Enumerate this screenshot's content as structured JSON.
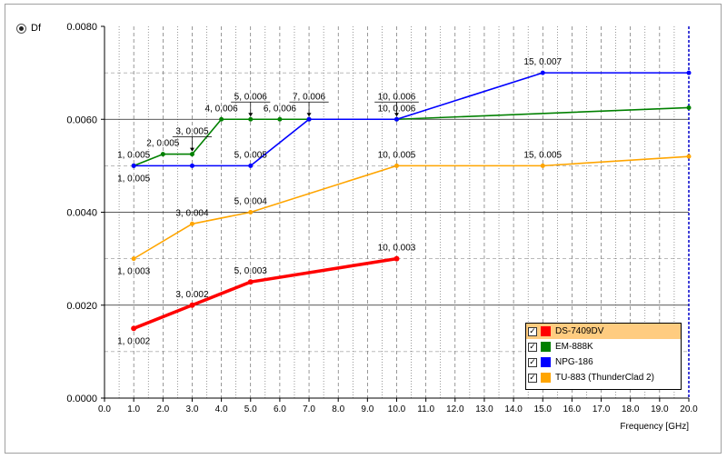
{
  "radio": {
    "label": "Df"
  },
  "chart_data": {
    "type": "line",
    "xlabel": "Frequency [GHz]",
    "ylabel": "",
    "xlim": [
      0,
      20
    ],
    "ylim": [
      0,
      0.008
    ],
    "x_ticks": [
      "0.0",
      "1.0",
      "2.0",
      "3.0",
      "4.0",
      "5.0",
      "6.0",
      "7.0",
      "8.0",
      "9.0",
      "10.0",
      "11.0",
      "12.0",
      "13.0",
      "14.0",
      "15.0",
      "16.0",
      "17.0",
      "18.0",
      "19.0",
      "20.0"
    ],
    "y_ticks": [
      "0.0000",
      "0.0020",
      "0.0040",
      "0.0060",
      "0.0080"
    ],
    "grid": true,
    "legend_position": "bottom-right",
    "series": [
      {
        "name": "DS-7409DV",
        "color": "#ff0000",
        "x": [
          1,
          3,
          5,
          10
        ],
        "y": [
          0.0015,
          0.002,
          0.0025,
          0.003
        ]
      },
      {
        "name": "EM-888K",
        "color": "#008000",
        "x": [
          1,
          2,
          3,
          4,
          5,
          6,
          7,
          10,
          20
        ],
        "y": [
          0.005,
          0.00525,
          0.00525,
          0.006,
          0.006,
          0.006,
          0.006,
          0.006,
          0.00625
        ]
      },
      {
        "name": "NPG-186",
        "color": "#0000ff",
        "x": [
          1,
          3,
          5,
          7,
          10,
          15,
          20
        ],
        "y": [
          0.005,
          0.005,
          0.005,
          0.006,
          0.006,
          0.007,
          0.007
        ]
      },
      {
        "name": "TU-883 (ThunderClad 2)",
        "color": "#ffa500",
        "x": [
          1,
          3,
          5,
          10,
          15,
          20
        ],
        "y": [
          0.003,
          0.00375,
          0.004,
          0.005,
          0.005,
          0.0052
        ]
      }
    ],
    "annotations": [
      {
        "text": "1, 0.002",
        "x": 1,
        "y": 0.0015,
        "pos": "below"
      },
      {
        "text": "3, 0.002",
        "x": 3,
        "y": 0.002,
        "pos": "above"
      },
      {
        "text": "5, 0.003",
        "x": 5,
        "y": 0.0025,
        "pos": "above"
      },
      {
        "text": "10, 0.003",
        "x": 10,
        "y": 0.003,
        "pos": "above"
      },
      {
        "text": "1, 0.003",
        "x": 1,
        "y": 0.003,
        "pos": "below"
      },
      {
        "text": "3, 0.004",
        "x": 3,
        "y": 0.00375,
        "pos": "above"
      },
      {
        "text": "5, 0.004",
        "x": 5,
        "y": 0.004,
        "pos": "above"
      },
      {
        "text": "10, 0.005",
        "x": 10,
        "y": 0.005,
        "pos": "above"
      },
      {
        "text": "15, 0.005",
        "x": 15,
        "y": 0.005,
        "pos": "above"
      },
      {
        "text": "1, 0.005",
        "x": 1,
        "y": 0.005,
        "pos": "above"
      },
      {
        "text": "1, 0.005",
        "x": 1,
        "y": 0.005,
        "pos": "below"
      },
      {
        "text": "2, 0.005",
        "x": 2,
        "y": 0.00525,
        "pos": "above"
      },
      {
        "text": "3, 0.005",
        "x": 3,
        "y": 0.00525,
        "pos": "above2"
      },
      {
        "text": "4, 0.006",
        "x": 4,
        "y": 0.006,
        "pos": "above"
      },
      {
        "text": "5, 0.006",
        "x": 5,
        "y": 0.006,
        "pos": "above2"
      },
      {
        "text": "5, 0.005",
        "x": 5,
        "y": 0.005,
        "pos": "above"
      },
      {
        "text": "6, 0.006",
        "x": 6,
        "y": 0.006,
        "pos": "above"
      },
      {
        "text": "7, 0.006",
        "x": 7,
        "y": 0.006,
        "pos": "above2"
      },
      {
        "text": "10, 0.006",
        "x": 10,
        "y": 0.006,
        "pos": "above2"
      },
      {
        "text": "10, 0.006",
        "x": 10,
        "y": 0.006,
        "pos": "above"
      },
      {
        "text": "15, 0.007",
        "x": 15,
        "y": 0.007,
        "pos": "above"
      }
    ]
  },
  "legend": {
    "items": [
      {
        "label": "DS-7409DV",
        "color": "#ff0000",
        "checked": "✓",
        "selected": true
      },
      {
        "label": "EM-888K",
        "color": "#008000",
        "checked": "✓",
        "selected": false
      },
      {
        "label": "NPG-186",
        "color": "#0000ff",
        "checked": "✓",
        "selected": false
      },
      {
        "label": "TU-883 (ThunderClad 2)",
        "color": "#ffa500",
        "checked": "✓",
        "selected": false
      }
    ]
  }
}
